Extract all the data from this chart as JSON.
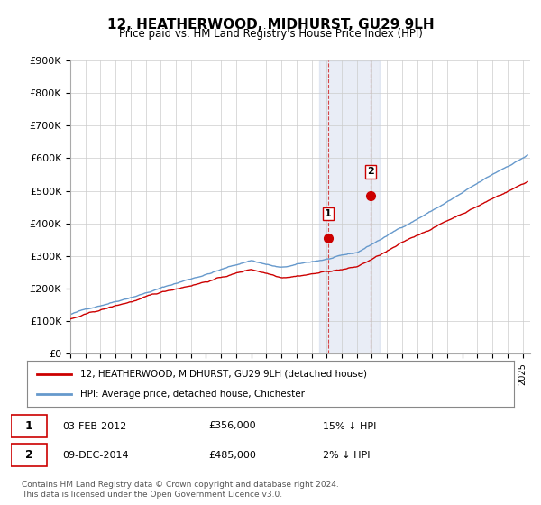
{
  "title": "12, HEATHERWOOD, MIDHURST, GU29 9LH",
  "subtitle": "Price paid vs. HM Land Registry's House Price Index (HPI)",
  "ylabel_ticks": [
    "£0",
    "£100K",
    "£200K",
    "£300K",
    "£400K",
    "£500K",
    "£600K",
    "£700K",
    "£800K",
    "£900K"
  ],
  "ylim": [
    0,
    900000
  ],
  "xlim_start": 1995.0,
  "xlim_end": 2025.5,
  "hpi_color": "#6699cc",
  "price_color": "#cc0000",
  "transaction1": {
    "date": "03-FEB-2012",
    "price": 356000,
    "label": "1",
    "x": 2012.08
  },
  "transaction2": {
    "date": "09-DEC-2014",
    "price": 485000,
    "label": "2",
    "x": 2014.92
  },
  "highlight_xmin": 2011.5,
  "highlight_xmax": 2015.5,
  "legend_line1": "12, HEATHERWOOD, MIDHURST, GU29 9LH (detached house)",
  "legend_line2": "HPI: Average price, detached house, Chichester",
  "table_row1": [
    "1",
    "03-FEB-2012",
    "£356,000",
    "15% ↓ HPI"
  ],
  "table_row2": [
    "2",
    "09-DEC-2014",
    "£485,000",
    "2% ↓ HPI"
  ],
  "footnote": "Contains HM Land Registry data © Crown copyright and database right 2024.\nThis data is licensed under the Open Government Licence v3.0.",
  "background_color": "#ffffff",
  "grid_color": "#cccccc"
}
